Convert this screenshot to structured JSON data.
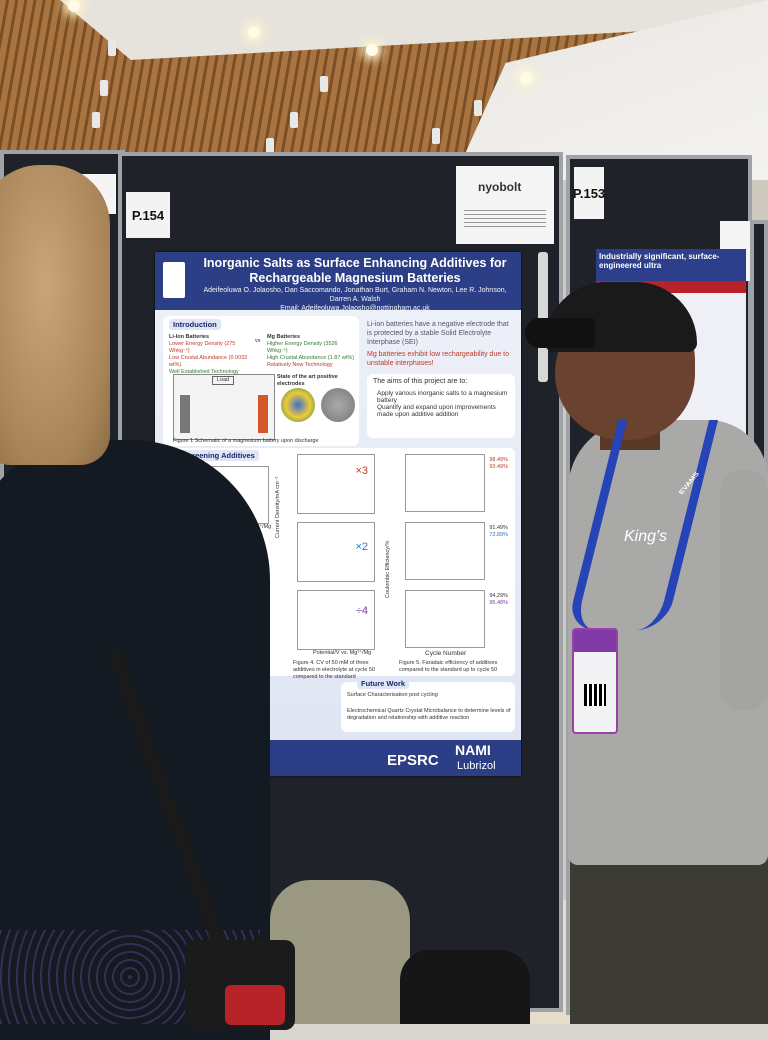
{
  "booth": {
    "left_tag": "P.154",
    "right_tag": "P.153",
    "brand_logo": "nyobolt"
  },
  "poster": {
    "title_line1": "Inorganic Salts as Surface Enhancing Additives for",
    "title_line2": "Rechargeable Magnesium Batteries",
    "authors": "Adeifeoluwa O. Jolaosho, Dan Saccomando, Jonathan Burt, Graham N. Newton, Lee R. Johnson, Darren A. Walsh",
    "email": "Email: Adeifeoluwa.Jolaosho@nottingham.ac.uk",
    "intro_label": "Introduction",
    "li_ion_title": "Li-Ion Batteries",
    "vs": "vs",
    "mg_title": "Mg Batteries",
    "li_points": [
      "Lower Energy Density (275 Whkg⁻¹)",
      "Low Crustal Abundance (0.0032 wt%)",
      "Well Established Technology"
    ],
    "mg_points": [
      "Higher Energy Density (3526 Whkg⁻¹)",
      "High Crustal Abundance (1.87 wt%)",
      "Relatively New Technology"
    ],
    "sei_text": "Li-ion batteries have a negative electrode that is protected by a stable Solid Electrolyte Interphase (SEI)",
    "mg_low_text": "Mg batteries exhibit low rechargeability due to unstable interphases!",
    "aims_intro": "The aims of this project are to:",
    "aims": [
      "Apply various inorganic salts to a magnesium battery",
      "Quantify and expand upon improvements made upon additive addition"
    ],
    "load_label": "Load",
    "state_art": "State of the art positive electrodes",
    "figure1_caption": "Figure 1 Schematic of a magnesium battery upon discharge",
    "screening_label": "Screening Additives",
    "mult_x3": "×3",
    "mult_x2": "×2",
    "mult_div4": "÷4",
    "cycle_number": "Cycle Number",
    "current_density_axis": "Current Density/mA cm⁻²",
    "coulombic_axis": "Coulombic Efficiency/%",
    "potential_axis": "Potential/V vs. Mg²⁺/Mg",
    "figure4_caption": "Figure 4. CV of 50 mM of three additives in electrolyte at cycle 50 compared to the standard",
    "figure5_caption": "Figure 5. Faradaic efficiency of additives compared to the standard up to cycle 50",
    "efficiency_labels": [
      "98.49%",
      "93.49%",
      "91.49%",
      "73.89%",
      "94.29%",
      "95.48%"
    ],
    "future_label": "Future Work",
    "future_items": [
      "Surface Characterisation post cycling",
      "Electrochemical Quartz Crystal Microbalance to determine levels of degradation and relationship with additive reaction"
    ],
    "sponsor_epsrc": "EPSRC",
    "sponsor_nami": "NAMI",
    "sponsor_lubrizol": "Lubrizol"
  },
  "right_poster": {
    "title": "Industrially significant, surface-engineered ultra"
  },
  "badge": {
    "lanyard_text": "EVAMS"
  },
  "shirt_text": "King's"
}
